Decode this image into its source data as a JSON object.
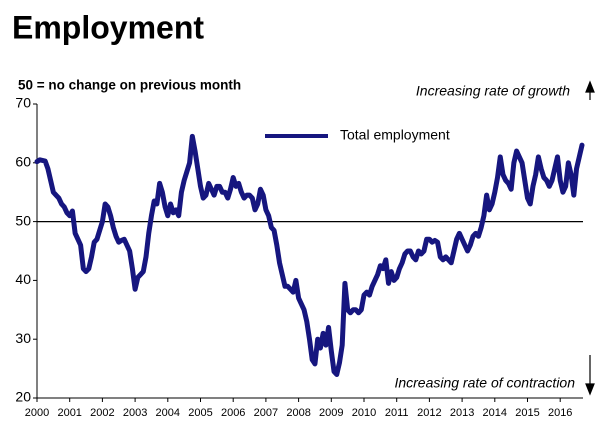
{
  "chart_data": {
    "type": "line",
    "title": "Employment",
    "subtitle": "50 = no change on previous month",
    "annotations": [
      "Increasing rate of growth",
      "Increasing rate of contraction"
    ],
    "reference_line": 50,
    "ylim": [
      20,
      70
    ],
    "yticks": [
      20,
      30,
      40,
      50,
      60,
      70
    ],
    "legend": "top",
    "categories": [
      "2000",
      null,
      null,
      null,
      null,
      null,
      null,
      null,
      null,
      null,
      null,
      null,
      "2001",
      null,
      null,
      null,
      null,
      null,
      null,
      null,
      null,
      null,
      null,
      null,
      "2002",
      null,
      null,
      null,
      null,
      null,
      null,
      null,
      null,
      null,
      null,
      null,
      "2003",
      null,
      null,
      null,
      null,
      null,
      null,
      null,
      null,
      null,
      null,
      null,
      "2004",
      null,
      null,
      null,
      null,
      null,
      null,
      null,
      null,
      null,
      null,
      null,
      "2005",
      null,
      null,
      null,
      null,
      null,
      null,
      null,
      null,
      null,
      null,
      null,
      "2006",
      null,
      null,
      null,
      null,
      null,
      null,
      null,
      null,
      null,
      null,
      null,
      "2007",
      null,
      null,
      null,
      null,
      null,
      null,
      null,
      null,
      null,
      null,
      null,
      "2008",
      null,
      null,
      null,
      null,
      null,
      null,
      null,
      null,
      null,
      null,
      null,
      "2009",
      null,
      null,
      null,
      null,
      null,
      null,
      null,
      null,
      null,
      null,
      null,
      "2010",
      null,
      null,
      null,
      null,
      null,
      null,
      null,
      null,
      null,
      null,
      null,
      "2011",
      null,
      null,
      null,
      null,
      null,
      null,
      null,
      null,
      null,
      null,
      null,
      "2012",
      null,
      null,
      null,
      null,
      null,
      null,
      null,
      null,
      null,
      null,
      null,
      "2013",
      null,
      null,
      null,
      null,
      null,
      null,
      null,
      null,
      null,
      null,
      null,
      "2014",
      null,
      null,
      null,
      null,
      null,
      null,
      null,
      null,
      null,
      null,
      null,
      "2015",
      null,
      null,
      null,
      null,
      null,
      null,
      null,
      null,
      null,
      null,
      null,
      "2016",
      null,
      null,
      null,
      null,
      null,
      null,
      null,
      null
    ],
    "series": [
      {
        "name": "Total employment",
        "color": "#16167f",
        "values": [
          60.2,
          60.5,
          60.4,
          60.3,
          59,
          57,
          55,
          54.5,
          54,
          53,
          52.5,
          51.5,
          51,
          51.8,
          48,
          47,
          46,
          42,
          41.5,
          42,
          44,
          46.5,
          47,
          48.5,
          50,
          53,
          52.5,
          51,
          49,
          47.5,
          46.5,
          46.8,
          47,
          46,
          45,
          42,
          38.5,
          40.5,
          41,
          41.5,
          44,
          48,
          51,
          53.5,
          53,
          56.5,
          55,
          52.5,
          51,
          53,
          51.5,
          52,
          51,
          55,
          57,
          58.5,
          60,
          64.5,
          62,
          59,
          56,
          54,
          54.5,
          56.5,
          55.5,
          54.5,
          56,
          56,
          55,
          55,
          54,
          55.5,
          57.5,
          56,
          56.5,
          55,
          54,
          54.5,
          54.5,
          54,
          52,
          53,
          55.5,
          54.5,
          52,
          51,
          49,
          48.5,
          46,
          43,
          41,
          39,
          39,
          38.5,
          38,
          40,
          37,
          36,
          35,
          33,
          30,
          26.5,
          25.8,
          30,
          28.5,
          31,
          29,
          32,
          28,
          24.5,
          24,
          26,
          29,
          39.5,
          35,
          34.5,
          35,
          35,
          34.5,
          35,
          37.5,
          38,
          37.5,
          39,
          40,
          41,
          42.5,
          42,
          43.5,
          39.5,
          41.5,
          40,
          40.5,
          42,
          43,
          44.5,
          45,
          45,
          44,
          43.5,
          45,
          44.5,
          45,
          47,
          47,
          46.5,
          46.8,
          46.5,
          44,
          43.5,
          44,
          43.5,
          43,
          45,
          47,
          48,
          47,
          46,
          45,
          46,
          47.5,
          48,
          47.5,
          49,
          51,
          54.5,
          52,
          53,
          55,
          57.5,
          61,
          58,
          57,
          56.5,
          55.5,
          60,
          62,
          61,
          60,
          57,
          54,
          53,
          56,
          58,
          61,
          59,
          57.5,
          57,
          56,
          57,
          59,
          61,
          57,
          55,
          56,
          60,
          58,
          54.5,
          59,
          61,
          63
        ]
      }
    ]
  }
}
